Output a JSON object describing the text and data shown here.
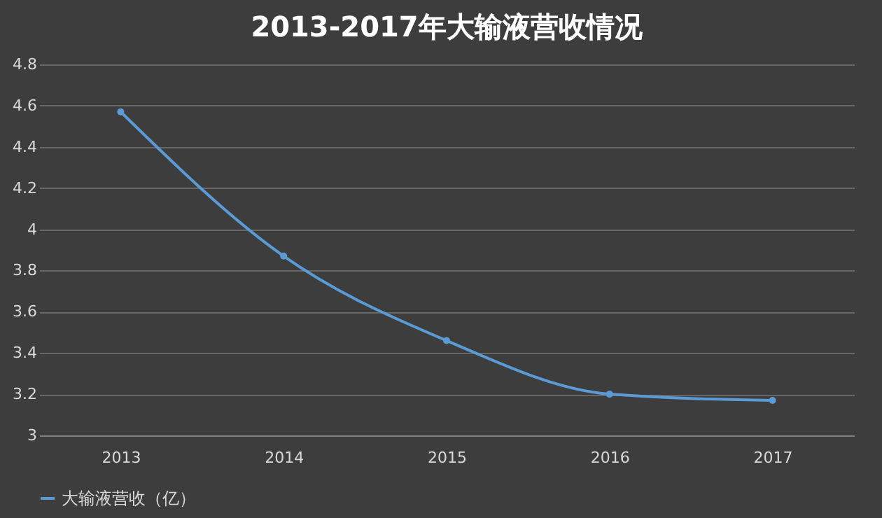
{
  "chart_data": {
    "type": "line",
    "title": "2013-2017年大输液营收情况",
    "categories": [
      "2013",
      "2014",
      "2015",
      "2016",
      "2017"
    ],
    "series": [
      {
        "name": "大输液营收（亿）",
        "color": "#5b9bd5",
        "values": [
          4.57,
          3.87,
          3.46,
          3.2,
          3.17
        ]
      }
    ],
    "ylim": [
      3,
      4.8
    ],
    "yticks": [
      3,
      3.2,
      3.4,
      3.6,
      3.8,
      4,
      4.2,
      4.4,
      4.6,
      4.8
    ],
    "grid": "y",
    "legend": "bottom",
    "marker": "circle",
    "line_style": "solid"
  }
}
